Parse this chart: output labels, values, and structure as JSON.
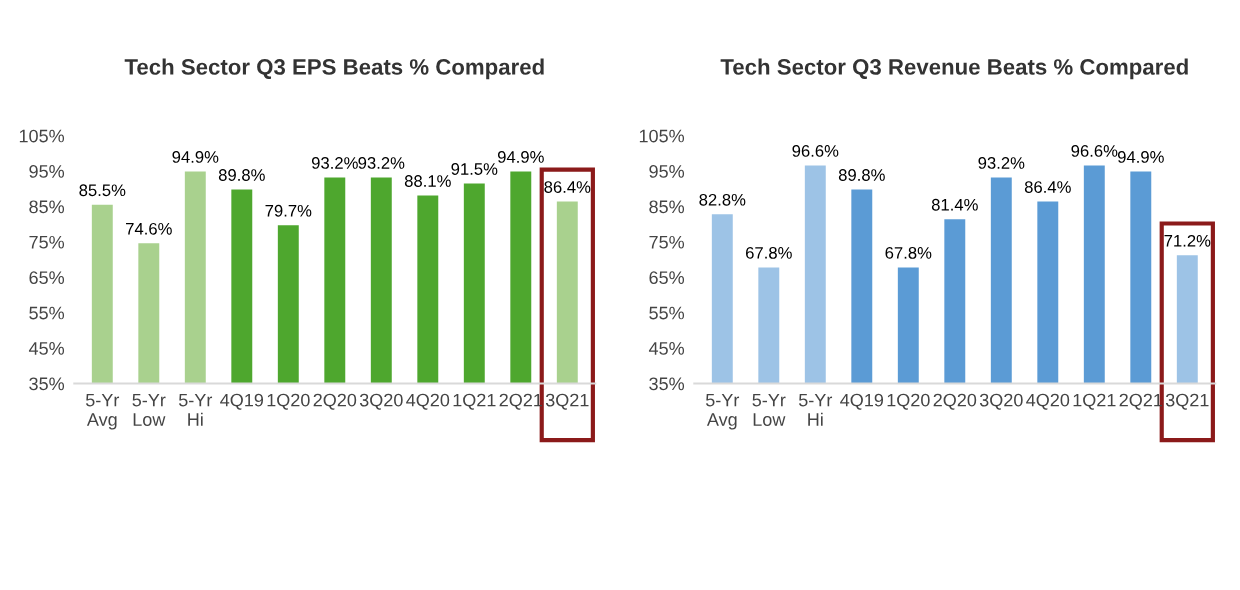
{
  "chart_data": [
    {
      "type": "bar",
      "title": "Tech Sector Q3 EPS Beats % Compared",
      "categories": [
        "5-Yr\nAvg",
        "5-Yr\nLow",
        "5-Yr\nHi",
        "4Q19",
        "1Q20",
        "2Q20",
        "3Q20",
        "4Q20",
        "1Q21",
        "2Q21",
        "3Q21"
      ],
      "values": [
        85.5,
        74.6,
        94.9,
        89.8,
        79.7,
        93.2,
        93.2,
        88.1,
        91.5,
        94.9,
        86.4
      ],
      "value_labels": [
        "85.5%",
        "74.6%",
        "94.9%",
        "89.8%",
        "79.7%",
        "93.2%",
        "93.2%",
        "88.1%",
        "91.5%",
        "94.9%",
        "86.4%"
      ],
      "colors": [
        "#a9d18e",
        "#a9d18e",
        "#a9d18e",
        "#4ea72e",
        "#4ea72e",
        "#4ea72e",
        "#4ea72e",
        "#4ea72e",
        "#4ea72e",
        "#4ea72e",
        "#a9d18e"
      ],
      "ylim": [
        35,
        105
      ],
      "yticks": [
        {
          "value": 35,
          "label": "35%"
        },
        {
          "value": 45,
          "label": "45%"
        },
        {
          "value": 55,
          "label": "55%"
        },
        {
          "value": 65,
          "label": "65%"
        },
        {
          "value": 75,
          "label": "75%"
        },
        {
          "value": 85,
          "label": "85%"
        },
        {
          "value": 95,
          "label": "95%"
        },
        {
          "value": 105,
          "label": "105%"
        }
      ],
      "grid": false,
      "legend": false
    },
    {
      "type": "bar",
      "title": "Tech Sector Q3 Revenue Beats % Compared",
      "categories": [
        "5-Yr\nAvg",
        "5-Yr\nLow",
        "5-Yr\nHi",
        "4Q19",
        "1Q20",
        "2Q20",
        "3Q20",
        "4Q20",
        "1Q21",
        "2Q21",
        "3Q21"
      ],
      "values": [
        82.8,
        67.8,
        96.6,
        89.8,
        67.8,
        81.4,
        93.2,
        86.4,
        96.6,
        94.9,
        71.2
      ],
      "value_labels": [
        "82.8%",
        "67.8%",
        "96.6%",
        "89.8%",
        "67.8%",
        "81.4%",
        "93.2%",
        "86.4%",
        "96.6%",
        "94.9%",
        "71.2%"
      ],
      "colors": [
        "#9dc3e6",
        "#9dc3e6",
        "#9dc3e6",
        "#5b9bd5",
        "#5b9bd5",
        "#5b9bd5",
        "#5b9bd5",
        "#5b9bd5",
        "#5b9bd5",
        "#5b9bd5",
        "#9dc3e6"
      ],
      "ylim": [
        35,
        105
      ],
      "yticks": [
        {
          "value": 35,
          "label": "35%"
        },
        {
          "value": 45,
          "label": "45%"
        },
        {
          "value": 55,
          "label": "55%"
        },
        {
          "value": 65,
          "label": "65%"
        },
        {
          "value": 75,
          "label": "75%"
        },
        {
          "value": 85,
          "label": "85%"
        },
        {
          "value": 95,
          "label": "95%"
        },
        {
          "value": 105,
          "label": "105%"
        }
      ],
      "grid": false,
      "legend": false
    }
  ]
}
